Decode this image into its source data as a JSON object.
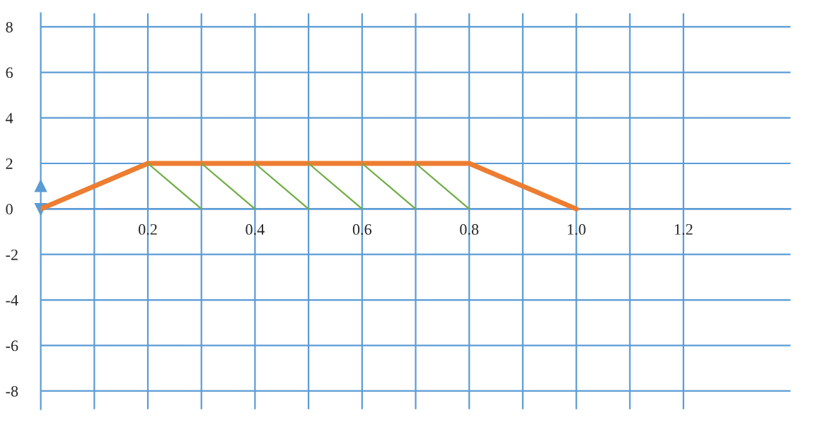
{
  "chart_data": {
    "type": "line",
    "series": [
      {
        "color": "#ed7d31",
        "x": [
          0,
          0.2,
          0.8,
          1.0
        ],
        "values": [
          0,
          2,
          2,
          0
        ]
      },
      {
        "color": "#70ad47",
        "x": [
          0.2,
          0.3
        ],
        "values": [
          2,
          0
        ]
      },
      {
        "color": "#70ad47",
        "x": [
          0.3,
          0.4
        ],
        "values": [
          2,
          0
        ]
      },
      {
        "color": "#70ad47",
        "x": [
          0.4,
          0.5
        ],
        "values": [
          2,
          0
        ]
      },
      {
        "color": "#70ad47",
        "x": [
          0.5,
          0.6
        ],
        "values": [
          2,
          0
        ]
      },
      {
        "color": "#70ad47",
        "x": [
          0.6,
          0.7
        ],
        "values": [
          2,
          0
        ]
      },
      {
        "color": "#70ad47",
        "x": [
          0.7,
          0.8
        ],
        "values": [
          2,
          0
        ]
      }
    ],
    "xlim": [
      0,
      1.4
    ],
    "ylim": [
      -8.8,
      8.6
    ],
    "xticks": [
      {
        "value": 0.1,
        "label": null
      },
      0.2,
      {
        "value": 0.3,
        "label": null
      },
      0.4,
      {
        "value": 0.5,
        "label": null
      },
      0.6,
      {
        "value": 0.7,
        "label": null
      },
      0.8,
      {
        "value": 0.9,
        "label": null
      },
      {
        "value": 1.0,
        "label": "1.0"
      },
      {
        "value": 1.1,
        "label": null
      },
      1.2
    ],
    "yticks": [
      -8,
      -6,
      -4,
      -2,
      0,
      2,
      4,
      6,
      8
    ],
    "grid": true
  }
}
